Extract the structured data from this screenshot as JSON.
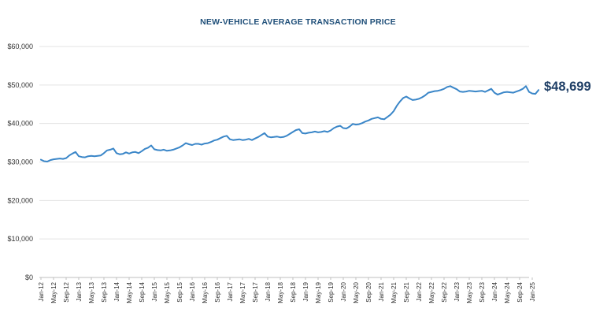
{
  "chart_data": {
    "type": "line",
    "title": "NEW-VEHICLE AVERAGE TRANSACTION PRICE",
    "xlabel": "",
    "ylabel": "",
    "ylim": [
      0,
      60000
    ],
    "y_ticks": [
      0,
      10000,
      20000,
      30000,
      40000,
      50000,
      60000
    ],
    "y_tick_labels": [
      "$0",
      "$10,000",
      "$20,000",
      "$30,000",
      "$40,000",
      "$50,000",
      "$60,000"
    ],
    "x_tick_labels": [
      "Jan-12",
      "May-12",
      "Sep-12",
      "Jan-13",
      "May-13",
      "Sep-13",
      "Jan-14",
      "May-14",
      "Sep-14",
      "Jan-15",
      "May-15",
      "Sep-15",
      "Jan-16",
      "May-16",
      "Sep-16",
      "Jan-17",
      "May-17",
      "Sep-17",
      "Jan-18",
      "May-18",
      "Sep-18",
      "Jan-19",
      "May-19",
      "Sep-19",
      "Jan-20",
      "May-20",
      "Sep-20",
      "Jan-21",
      "May-21",
      "Sep-21",
      "Jan-22",
      "May-22",
      "Sep-22",
      "Jan-23",
      "May-23",
      "Sep-23",
      "Jan-24",
      "May-24",
      "Sep-24",
      "Jan-25"
    ],
    "x_start": "Jan-12",
    "grid": "horizontal",
    "line_color": "#3a86c8",
    "annotation": "$48,699",
    "series": [
      {
        "values": [
          30600,
          30200,
          30100,
          30500,
          30700,
          30800,
          30900,
          30800,
          31000,
          31700,
          32200,
          32600,
          31500,
          31300,
          31200,
          31500,
          31600,
          31500,
          31600,
          31700,
          32300,
          33000,
          33200,
          33500,
          32300,
          32000,
          32100,
          32500,
          32200,
          32500,
          32600,
          32300,
          32800,
          33400,
          33700,
          34300,
          33300,
          33100,
          33000,
          33200,
          32900,
          33000,
          33200,
          33500,
          33800,
          34300,
          34900,
          34600,
          34400,
          34700,
          34700,
          34500,
          34800,
          34900,
          35200,
          35600,
          35800,
          36200,
          36600,
          36800,
          35900,
          35700,
          35800,
          35900,
          35700,
          35800,
          36000,
          35700,
          36100,
          36500,
          37000,
          37500,
          36600,
          36400,
          36500,
          36600,
          36400,
          36500,
          36800,
          37300,
          37800,
          38300,
          38500,
          37500,
          37400,
          37600,
          37700,
          37900,
          37700,
          37800,
          38000,
          37800,
          38200,
          38800,
          39200,
          39400,
          38800,
          38700,
          39200,
          39900,
          39700,
          39800,
          40100,
          40500,
          40800,
          41200,
          41400,
          41600,
          41200,
          41100,
          41700,
          42300,
          43200,
          44600,
          45700,
          46600,
          47000,
          46500,
          46100,
          46200,
          46400,
          46800,
          47300,
          48000,
          48200,
          48400,
          48500,
          48700,
          49000,
          49500,
          49700,
          49300,
          48900,
          48300,
          48200,
          48300,
          48500,
          48400,
          48300,
          48400,
          48500,
          48200,
          48600,
          49000,
          48000,
          47500,
          47800,
          48100,
          48200,
          48100,
          48000,
          48300,
          48600,
          49000,
          49700,
          48200,
          47800,
          47700,
          48699
        ]
      }
    ]
  }
}
